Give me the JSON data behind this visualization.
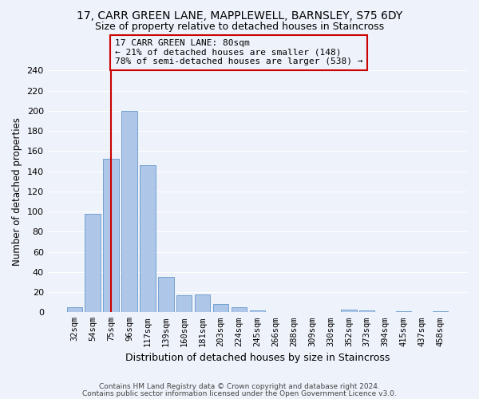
{
  "title": "17, CARR GREEN LANE, MAPPLEWELL, BARNSLEY, S75 6DY",
  "subtitle": "Size of property relative to detached houses in Staincross",
  "xlabel": "Distribution of detached houses by size in Staincross",
  "ylabel": "Number of detached properties",
  "bar_labels": [
    "32sqm",
    "54sqm",
    "75sqm",
    "96sqm",
    "117sqm",
    "139sqm",
    "160sqm",
    "181sqm",
    "203sqm",
    "224sqm",
    "245sqm",
    "266sqm",
    "288sqm",
    "309sqm",
    "330sqm",
    "352sqm",
    "373sqm",
    "394sqm",
    "415sqm",
    "437sqm",
    "458sqm"
  ],
  "bar_values": [
    5,
    98,
    152,
    200,
    146,
    35,
    17,
    18,
    8,
    5,
    2,
    0,
    0,
    0,
    0,
    3,
    2,
    0,
    1,
    0,
    1
  ],
  "bar_color": "#aec6e8",
  "bar_edge_color": "#6699cc",
  "vline_x": 2,
  "vline_color": "#cc0000",
  "ylim": [
    0,
    240
  ],
  "yticks": [
    0,
    20,
    40,
    60,
    80,
    100,
    120,
    140,
    160,
    180,
    200,
    220,
    240
  ],
  "annotation_title": "17 CARR GREEN LANE: 80sqm",
  "annotation_line1": "← 21% of detached houses are smaller (148)",
  "annotation_line2": "78% of semi-detached houses are larger (538) →",
  "annotation_box_color": "#cc0000",
  "footnote1": "Contains HM Land Registry data © Crown copyright and database right 2024.",
  "footnote2": "Contains public sector information licensed under the Open Government Licence v3.0.",
  "background_color": "#eef2fa",
  "grid_color": "#ffffff",
  "title_fontsize": 10,
  "subtitle_fontsize": 9
}
